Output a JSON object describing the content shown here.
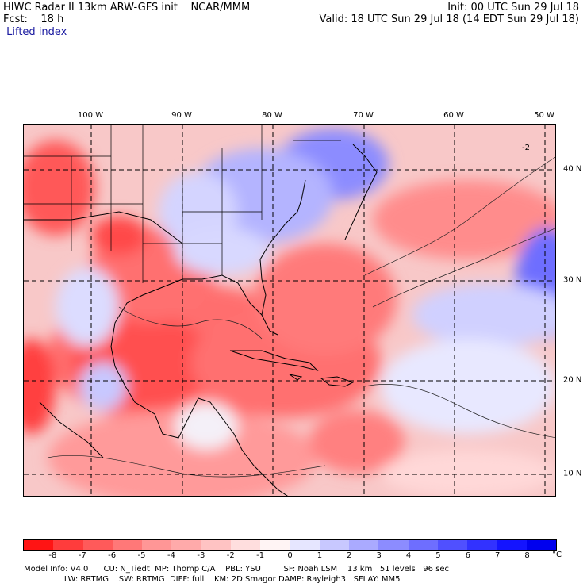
{
  "header": {
    "line1_left": "HIWC Radar II 13km ARW-GFS init    NCAR/MMM",
    "line2_left": "Fcst:    18 h",
    "line3_left": " Lifted index",
    "line1_right": "Init: 00 UTC Sun 29 Jul 18",
    "line2_right": "Valid: 18 UTC Sun 29 Jul 18 (14 EDT Sun 29 Jul 18)"
  },
  "map": {
    "longitude_labels": [
      "100 W",
      "90 W",
      "80 W",
      "70 W",
      "60 W",
      "50 W"
    ],
    "latitude_labels": [
      "40 N",
      "30 N",
      "20 N",
      "10 N"
    ],
    "contour_label": "-2"
  },
  "colorbar": {
    "labels": [
      "-8",
      "-7",
      "-6",
      "-5",
      "-4",
      "-3",
      "-2",
      "-1",
      "0",
      "1",
      "2",
      "3",
      "4",
      "5",
      "6",
      "7",
      "8"
    ],
    "unit": "°C",
    "colors": [
      "#ff1414",
      "#ff3c3c",
      "#ff5a5a",
      "#ff7878",
      "#ff9696",
      "#ffaaaa",
      "#ffc3c3",
      "#ffdede",
      "#fff4f4",
      "#e6e6ff",
      "#c8c8ff",
      "#aaaaff",
      "#8c8cff",
      "#6e6eff",
      "#5050ff",
      "#3232ff",
      "#1414ff",
      "#0000ee"
    ]
  },
  "footer": {
    "line1": "Model Info: V4.0      CU: N_Tiedt  MP: Thomp C/A    PBL: YSU         SF: Noah LSM    13 km   51 levels   96 sec",
    "line2": "                LW: RRTMG    SW: RRTMG  DIFF: full    KM: 2D Smagor DAMP: Rayleigh3   SFLAY: MM5"
  }
}
